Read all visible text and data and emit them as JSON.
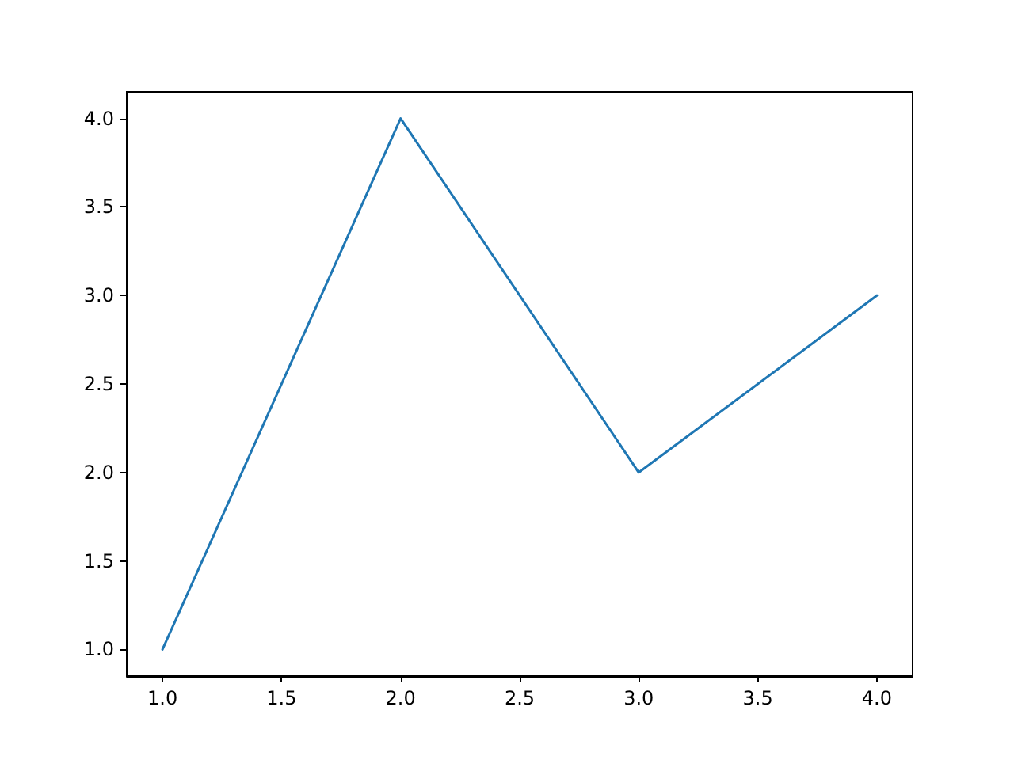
{
  "chart_data": {
    "type": "line",
    "x": [
      1,
      2,
      3,
      4
    ],
    "series": [
      {
        "color": "#1f77b4",
        "values": [
          1,
          4,
          2,
          3
        ]
      }
    ],
    "xlim": [
      0.85,
      4.15
    ],
    "ylim": [
      0.85,
      4.15
    ],
    "xticks": [
      {
        "value": 1,
        "label": "1.0"
      },
      {
        "value": 1.5,
        "label": "1.5"
      },
      {
        "value": 2,
        "label": "2.0"
      },
      {
        "value": 2.5,
        "label": "2.5"
      },
      {
        "value": 3,
        "label": "3.0"
      },
      {
        "value": 3.5,
        "label": "3.5"
      },
      {
        "value": 4,
        "label": "4.0"
      }
    ],
    "yticks": [
      {
        "value": 1,
        "label": "1.0"
      },
      {
        "value": 1.5,
        "label": "1.5"
      },
      {
        "value": 2,
        "label": "2.0"
      },
      {
        "value": 2.5,
        "label": "2.5"
      },
      {
        "value": 3,
        "label": "3.0"
      },
      {
        "value": 3.5,
        "label": "3.5"
      },
      {
        "value": 4,
        "label": "4.0"
      }
    ],
    "marker": "none",
    "line_style": "solid",
    "grid": false
  }
}
